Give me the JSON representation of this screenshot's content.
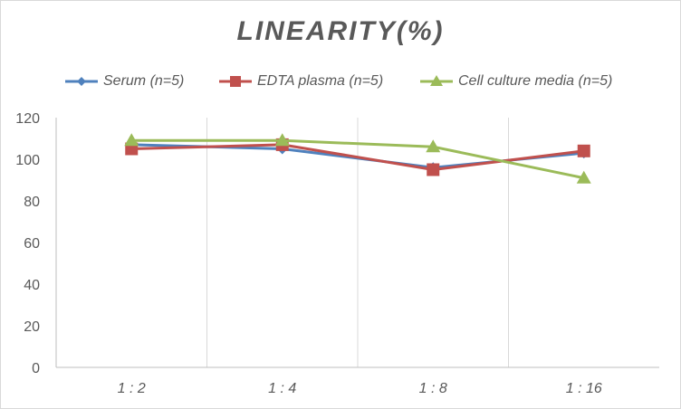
{
  "chart_data": {
    "type": "line",
    "title": "LINEARITY(%)",
    "xlabel": "",
    "ylabel": "",
    "categories": [
      "1:2",
      "1:4",
      "1:8",
      "1:16"
    ],
    "ylim": [
      0,
      120
    ],
    "yticks": [
      0,
      20,
      40,
      60,
      80,
      100,
      120
    ],
    "grid": "vertical",
    "legend_position": "top",
    "series": [
      {
        "name": "Serum (n=5)",
        "values": [
          107,
          105,
          96,
          103
        ],
        "color": "#4f81bd",
        "marker": "diamond"
      },
      {
        "name": "EDTA plasma (n=5)",
        "values": [
          105,
          107,
          95,
          104
        ],
        "color": "#c0504d",
        "marker": "square"
      },
      {
        "name": "Cell culture media (n=5)",
        "values": [
          109,
          109,
          106,
          91
        ],
        "color": "#9bbb59",
        "marker": "triangle"
      }
    ]
  }
}
